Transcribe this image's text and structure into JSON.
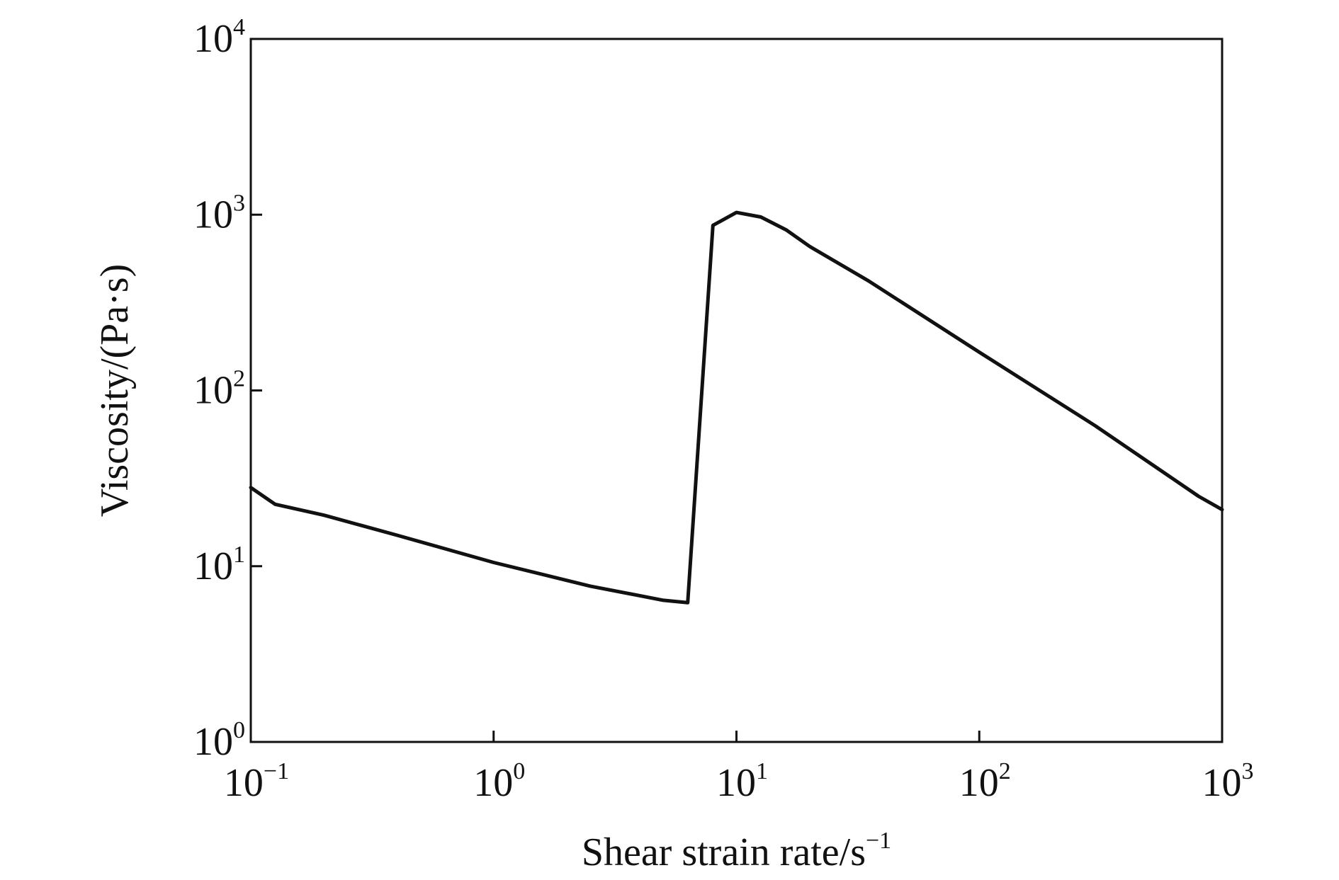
{
  "chart_data": {
    "type": "line",
    "title": "",
    "xlabel": "Shear strain rate/s",
    "xlabel_sup": "−1",
    "ylabel": "Viscosity/(Pa·s)",
    "xscale": "log",
    "yscale": "log",
    "xlim": [
      0.1,
      1000
    ],
    "ylim": [
      1,
      10000
    ],
    "grid": false,
    "legend": "none",
    "line_color": "#111111",
    "x_ticks": [
      {
        "value": 0.1,
        "base": "10",
        "exp": "−1"
      },
      {
        "value": 1,
        "base": "10",
        "exp": "0"
      },
      {
        "value": 10,
        "base": "10",
        "exp": "1"
      },
      {
        "value": 100,
        "base": "10",
        "exp": "2"
      },
      {
        "value": 1000,
        "base": "10",
        "exp": "3"
      }
    ],
    "y_ticks": [
      {
        "value": 1,
        "base": "10",
        "exp": "0"
      },
      {
        "value": 10,
        "base": "10",
        "exp": "1"
      },
      {
        "value": 100,
        "base": "10",
        "exp": "2"
      },
      {
        "value": 1000,
        "base": "10",
        "exp": "3"
      },
      {
        "value": 10000,
        "base": "10",
        "exp": "4"
      }
    ],
    "series": [
      {
        "x": [
          0.1,
          0.126,
          0.2,
          0.4,
          1.0,
          2.5,
          5.0,
          6.3,
          8.0,
          10.0,
          12.6,
          16.0,
          20.0,
          35.0,
          100.0,
          300.0,
          800.0,
          1000.0
        ],
        "y": [
          28,
          22.5,
          19.5,
          15,
          10.5,
          7.7,
          6.4,
          6.2,
          870,
          1030,
          970,
          820,
          660,
          420,
          165,
          63,
          25,
          21
        ]
      }
    ]
  }
}
